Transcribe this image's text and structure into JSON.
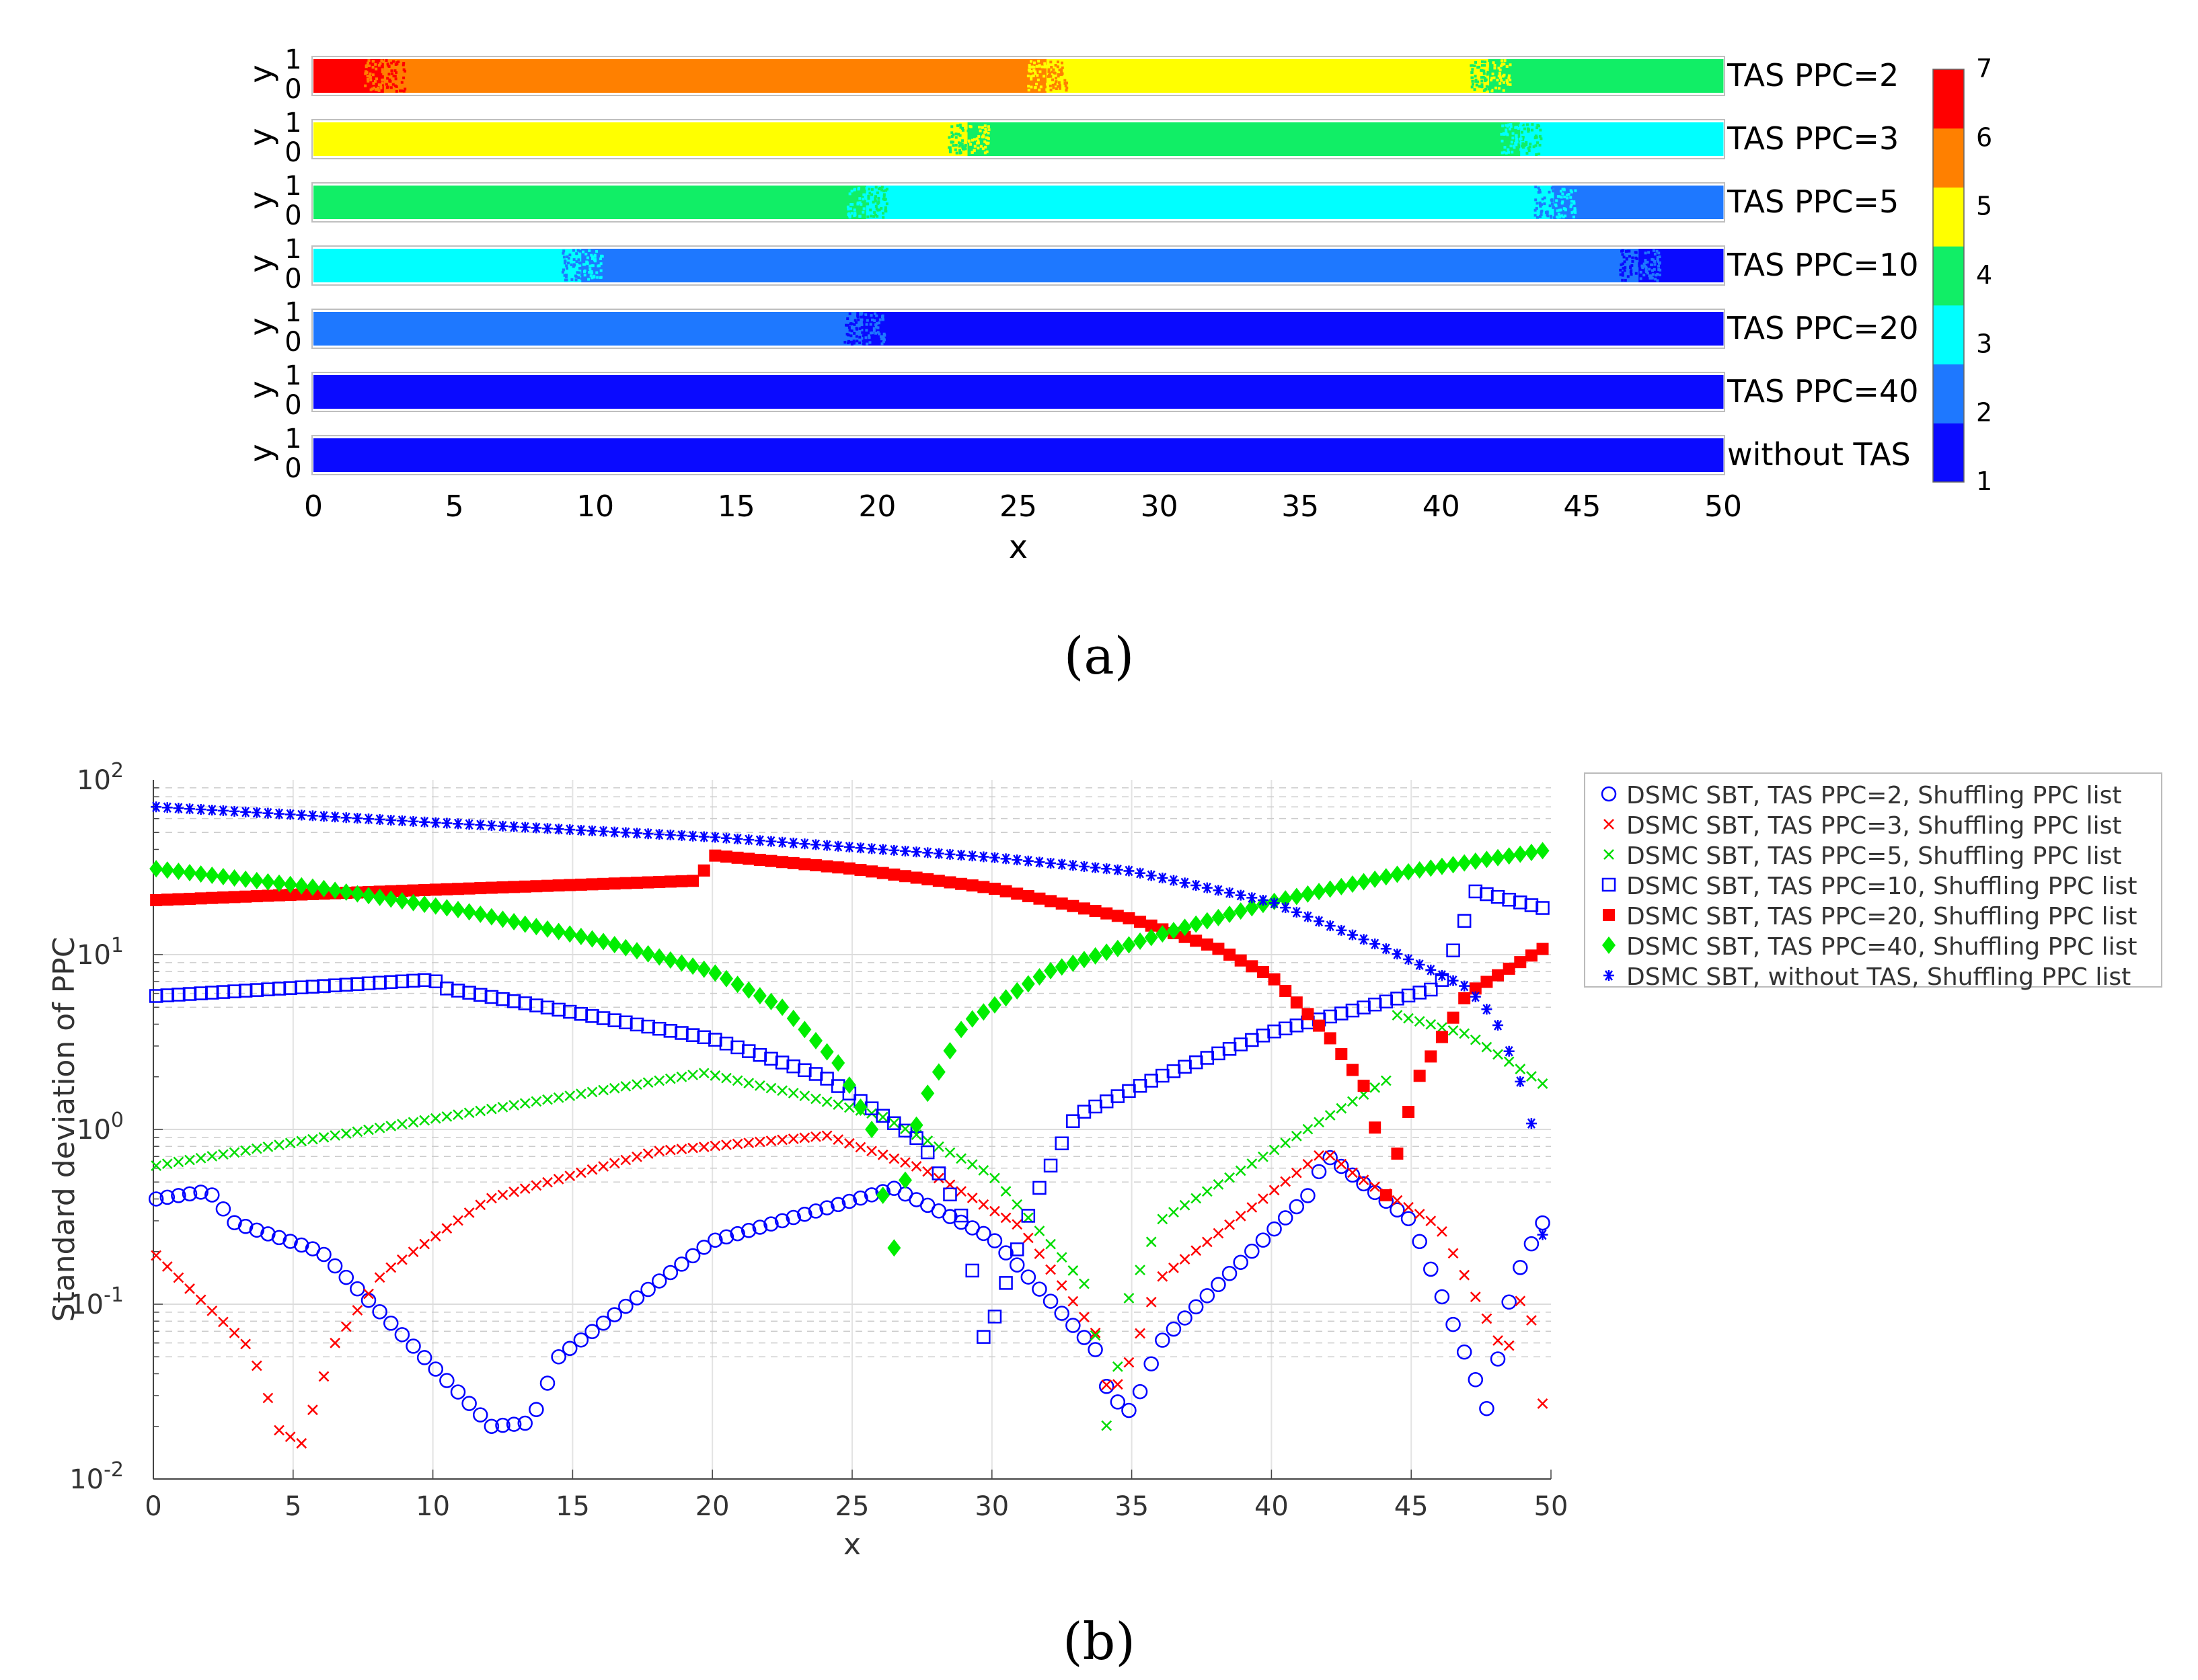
{
  "chart_data": [
    {
      "type": "heatmap",
      "panel_label": "(a)",
      "xlabel": "x",
      "ylabel": "y",
      "xlim": [
        0,
        50
      ],
      "xticks": [
        "0",
        "5",
        "10",
        "15",
        "20",
        "25",
        "30",
        "35",
        "40",
        "45",
        "50"
      ],
      "yticks": [
        "0",
        "1"
      ],
      "colorbar": {
        "range": [
          1,
          7
        ],
        "ticks": [
          "1",
          "2",
          "3",
          "4",
          "5",
          "6",
          "7"
        ],
        "colors": [
          "#0a0aff",
          "#1e78ff",
          "#00ffff",
          "#11ee66",
          "#ffff00",
          "#ff8000",
          "#ff0000"
        ]
      },
      "strips": [
        {
          "label": "TAS PPC=2",
          "segments": [
            [
              0,
              2.5,
              7
            ],
            [
              2.5,
              26,
              6
            ],
            [
              26,
              41.7,
              5
            ],
            [
              41.7,
              50,
              4
            ]
          ]
        },
        {
          "label": "TAS PPC=3",
          "segments": [
            [
              0,
              23.2,
              5
            ],
            [
              23.2,
              42.8,
              4
            ],
            [
              42.8,
              50,
              3
            ]
          ]
        },
        {
          "label": "TAS PPC=5",
          "segments": [
            [
              0,
              19.6,
              4
            ],
            [
              19.6,
              44,
              3
            ],
            [
              44,
              50,
              2
            ]
          ]
        },
        {
          "label": "TAS PPC=10",
          "segments": [
            [
              0,
              9.5,
              3
            ],
            [
              9.5,
              47,
              2
            ],
            [
              47,
              50,
              1
            ]
          ]
        },
        {
          "label": "TAS PPC=20",
          "segments": [
            [
              0,
              19.5,
              2
            ],
            [
              19.5,
              50,
              1
            ]
          ]
        },
        {
          "label": "TAS PPC=40",
          "segments": [
            [
              0,
              50,
              1
            ]
          ]
        },
        {
          "label": "without TAS",
          "segments": [
            [
              0,
              50,
              1
            ]
          ]
        }
      ]
    },
    {
      "type": "scatter",
      "panel_label": "(b)",
      "xlabel": "x",
      "ylabel": "Standard deviation of PPC",
      "yscale": "log",
      "xlim": [
        0,
        50
      ],
      "ylim": [
        0.01,
        100
      ],
      "xticks": [
        "0",
        "5",
        "10",
        "15",
        "20",
        "25",
        "30",
        "35",
        "40",
        "45",
        "50"
      ],
      "yticks": [
        {
          "base": "10",
          "exp": "-2"
        },
        {
          "base": "10",
          "exp": "-1"
        },
        {
          "base": "10",
          "exp": "0"
        },
        {
          "base": "10",
          "exp": "1"
        },
        {
          "base": "10",
          "exp": "2"
        }
      ],
      "x_start": 0.1,
      "x_step": 0.4,
      "series": [
        {
          "name": "DSMC SBT, TAS PPC=2, Shuffling PPC list",
          "marker": "circle",
          "color": "#0000ff",
          "anchors": [
            [
              0.1,
              0.4
            ],
            [
              1.8,
              0.44
            ],
            [
              2.3,
              0.41
            ],
            [
              2.7,
              0.3
            ],
            [
              6,
              0.2
            ],
            [
              12.1,
              0.02
            ],
            [
              13.5,
              0.021
            ],
            [
              14.5,
              0.05
            ],
            [
              20,
              0.23
            ],
            [
              26.5,
              0.46
            ],
            [
              30,
              0.24
            ],
            [
              33.7,
              0.055
            ],
            [
              34.2,
              0.03
            ],
            [
              35,
              0.024
            ],
            [
              36,
              0.06
            ],
            [
              41.5,
              0.45
            ],
            [
              41.9,
              0.73
            ],
            [
              45,
              0.3
            ],
            [
              47.3,
              0.037
            ],
            [
              47.8,
              0.023
            ],
            [
              48.3,
              0.08
            ],
            [
              48.8,
              0.15
            ],
            [
              49.6,
              0.28
            ],
            [
              50,
              0.33
            ]
          ]
        },
        {
          "name": "DSMC SBT, TAS PPC=3, Shuffling PPC list",
          "marker": "x",
          "color": "#ff0000",
          "anchors": [
            [
              0.1,
              0.19
            ],
            [
              3.5,
              0.055
            ],
            [
              4.5,
              0.019
            ],
            [
              5.3,
              0.016
            ],
            [
              6.5,
              0.06
            ],
            [
              8.2,
              0.15
            ],
            [
              12,
              0.4
            ],
            [
              18,
              0.75
            ],
            [
              24.1,
              0.92
            ],
            [
              27.5,
              0.6
            ],
            [
              31,
              0.28
            ],
            [
              33.8,
              0.065
            ],
            [
              34.2,
              0.028
            ],
            [
              35,
              0.05
            ],
            [
              36,
              0.14
            ],
            [
              41.9,
              0.75
            ],
            [
              43,
              0.55
            ],
            [
              46,
              0.28
            ],
            [
              48.4,
              0.05
            ],
            [
              49.1,
              0.14
            ],
            [
              49.7,
              0.027
            ],
            [
              50,
              0.06
            ]
          ]
        },
        {
          "name": "DSMC SBT, TAS PPC=5, Shuffling PPC list",
          "marker": "x",
          "color": "#00dd00",
          "anchors": [
            [
              0.1,
              0.62
            ],
            [
              19.7,
              2.1
            ],
            [
              23,
              1.6
            ],
            [
              26,
              1.2
            ],
            [
              30,
              0.55
            ],
            [
              33.5,
              0.12
            ],
            [
              34.2,
              0.015
            ],
            [
              34.7,
              0.09
            ],
            [
              36,
              0.3
            ],
            [
              44.1,
              1.9
            ],
            [
              44.5,
              4.5
            ],
            [
              47,
              3.5
            ],
            [
              50,
              1.7
            ]
          ]
        },
        {
          "name": "DSMC SBT, TAS PPC=10, Shuffling PPC list",
          "marker": "square",
          "color": "#0000ff",
          "anchors": [
            [
              0.1,
              5.8
            ],
            [
              10,
              7.2
            ],
            [
              10.5,
              6.4
            ],
            [
              20,
              3.3
            ],
            [
              24,
              2.0
            ],
            [
              27.5,
              0.85
            ],
            [
              29,
              0.3
            ],
            [
              29.7,
              0.065
            ],
            [
              30.1,
              0.085
            ],
            [
              31.5,
              0.4
            ],
            [
              33,
              1.2
            ],
            [
              36,
              2.0
            ],
            [
              40,
              3.6
            ],
            [
              46,
              6.5
            ],
            [
              47.3,
              23
            ],
            [
              50,
              18
            ]
          ]
        },
        {
          "name": "DSMC SBT, TAS PPC=20, Shuffling PPC list",
          "marker": "filled-square",
          "color": "#ff0000",
          "anchors": [
            [
              0.1,
              20.5
            ],
            [
              5,
              22
            ],
            [
              10,
              23.5
            ],
            [
              19.5,
              26.5
            ],
            [
              20,
              37
            ],
            [
              25,
              31
            ],
            [
              30,
              24
            ],
            [
              35,
              16
            ],
            [
              38,
              11
            ],
            [
              40,
              7.5
            ],
            [
              42,
              3.5
            ],
            [
              43.5,
              1.6
            ],
            [
              44.1,
              0.42
            ],
            [
              45.2,
              1.9
            ],
            [
              47,
              6
            ],
            [
              50,
              11.5
            ]
          ]
        },
        {
          "name": "DSMC SBT, TAS PPC=40, Shuffling PPC list",
          "marker": "diamond",
          "color": "#00ee00",
          "anchors": [
            [
              0.1,
              31
            ],
            [
              6,
              24
            ],
            [
              11,
              18
            ],
            [
              16,
              12
            ],
            [
              20,
              8
            ],
            [
              22.5,
              5
            ],
            [
              24.5,
              2.4
            ],
            [
              25.7,
              1.0
            ],
            [
              26.1,
              0.42
            ],
            [
              26.5,
              0.21
            ],
            [
              27.1,
              0.8
            ],
            [
              27.5,
              1.4
            ],
            [
              29,
              4
            ],
            [
              32,
              8
            ],
            [
              36,
              13
            ],
            [
              40,
              20
            ],
            [
              45,
              30
            ],
            [
              50,
              40
            ]
          ]
        },
        {
          "name": "DSMC SBT, without TAS, Shuffling PPC list",
          "marker": "asterisk",
          "color": "#0000ff",
          "anchors": [
            [
              0.1,
              70
            ],
            [
              10,
              57
            ],
            [
              20,
              47
            ],
            [
              30,
              36
            ],
            [
              35,
              30
            ],
            [
              40,
              20
            ],
            [
              44,
              11
            ],
            [
              47,
              6.5
            ],
            [
              48,
              4.3
            ],
            [
              48.5,
              2.8
            ],
            [
              49,
              1.7
            ],
            [
              49.5,
              0.8
            ],
            [
              49.9,
              0.078
            ]
          ]
        }
      ]
    }
  ]
}
